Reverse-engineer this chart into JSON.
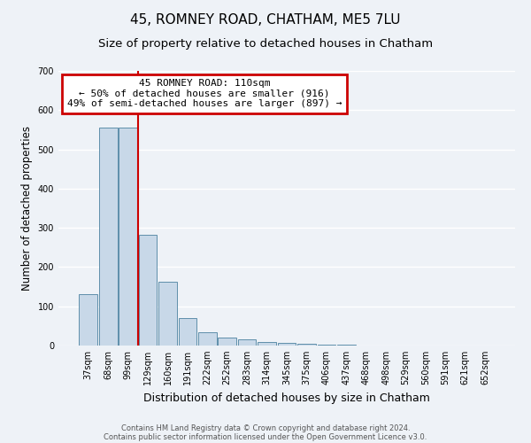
{
  "title": "45, ROMNEY ROAD, CHATHAM, ME5 7LU",
  "subtitle": "Size of property relative to detached houses in Chatham",
  "xlabel": "Distribution of detached houses by size in Chatham",
  "ylabel": "Number of detached properties",
  "bar_labels": [
    "37sqm",
    "68sqm",
    "99sqm",
    "129sqm",
    "160sqm",
    "191sqm",
    "222sqm",
    "252sqm",
    "283sqm",
    "314sqm",
    "345sqm",
    "375sqm",
    "406sqm",
    "437sqm",
    "468sqm",
    "498sqm",
    "529sqm",
    "560sqm",
    "591sqm",
    "621sqm",
    "652sqm"
  ],
  "bar_values": [
    130,
    555,
    555,
    283,
    163,
    70,
    33,
    20,
    15,
    10,
    7,
    5,
    3,
    2,
    0,
    0,
    0,
    0,
    0,
    0,
    0
  ],
  "bar_color": "#c8d8e8",
  "bar_edge_color": "#5f8faa",
  "vline_x_index": 2,
  "vline_color": "#cc0000",
  "ylim": [
    0,
    700
  ],
  "yticks": [
    0,
    100,
    200,
    300,
    400,
    500,
    600,
    700
  ],
  "annotation_title": "45 ROMNEY ROAD: 110sqm",
  "annotation_line1": "← 50% of detached houses are smaller (916)",
  "annotation_line2": "49% of semi-detached houses are larger (897) →",
  "annotation_box_color": "#cc0000",
  "footer_line1": "Contains HM Land Registry data © Crown copyright and database right 2024.",
  "footer_line2": "Contains public sector information licensed under the Open Government Licence v3.0.",
  "background_color": "#eef2f7",
  "grid_color": "#ffffff",
  "title_fontsize": 11,
  "subtitle_fontsize": 9.5,
  "ylabel_fontsize": 8.5,
  "xlabel_fontsize": 9,
  "tick_fontsize": 7,
  "footer_fontsize": 6,
  "ann_fontsize": 8
}
